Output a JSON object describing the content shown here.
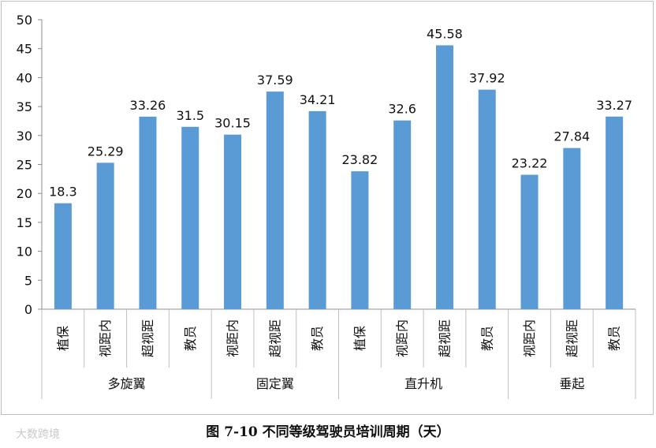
{
  "caption": "图 7-10 不同等级驾驶员培训周期（天）",
  "watermark": "大数跨境",
  "colors": {
    "bar": "#5b9bd5",
    "axis": "#8c8c8c",
    "grid": "#bfbfbf",
    "text": "#111111"
  },
  "chart_data": {
    "type": "bar",
    "ylim": [
      0,
      50
    ],
    "yticks": [
      0,
      5,
      10,
      15,
      20,
      25,
      30,
      35,
      40,
      45,
      50
    ],
    "grid": false,
    "groups": [
      {
        "name": "多旋翼",
        "categories": [
          "植保",
          "视距内",
          "超视距",
          "教员"
        ],
        "values": [
          18.3,
          25.29,
          33.26,
          31.5
        ]
      },
      {
        "name": "固定翼",
        "categories": [
          "视距内",
          "超视距",
          "教员"
        ],
        "values": [
          30.15,
          37.59,
          34.21
        ]
      },
      {
        "name": "直升机",
        "categories": [
          "植保",
          "视距内",
          "超视距",
          "教员"
        ],
        "values": [
          23.82,
          32.6,
          45.58,
          37.92
        ]
      },
      {
        "name": "垂起",
        "categories": [
          "视距内",
          "超视距",
          "教员"
        ],
        "values": [
          23.22,
          27.84,
          33.27
        ]
      }
    ],
    "data_labels": [
      "18.3",
      "25.29",
      "33.26",
      "31.5",
      "30.15",
      "37.59",
      "34.21",
      "23.82",
      "32.6",
      "45.58",
      "37.92",
      "23.22",
      "27.84",
      "33.27"
    ]
  }
}
